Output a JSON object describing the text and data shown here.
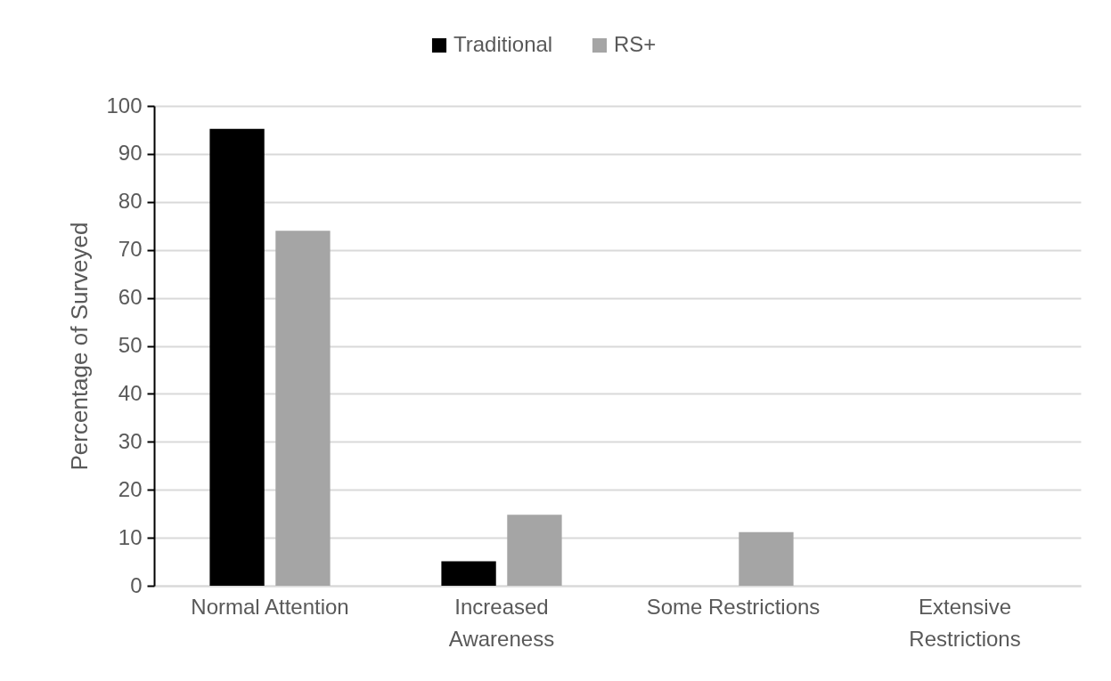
{
  "chart_data": {
    "type": "bar",
    "categories": [
      "Normal Attention",
      "Increased Awareness",
      "Some Restrictions",
      "Extensive Restrictions"
    ],
    "series": [
      {
        "name": "Traditional",
        "color": "#000000",
        "values": [
          95.2,
          5.1,
          0,
          0
        ]
      },
      {
        "name": "RS+",
        "color": "#a5a5a5",
        "values": [
          74,
          14.8,
          11.2,
          0
        ]
      }
    ],
    "ylabel": "Percentage of Surveyed",
    "ylim": [
      0,
      100
    ],
    "yticks": [
      0,
      10,
      20,
      30,
      40,
      50,
      60,
      70,
      80,
      90,
      100
    ],
    "grid": "y",
    "legend": "top"
  }
}
